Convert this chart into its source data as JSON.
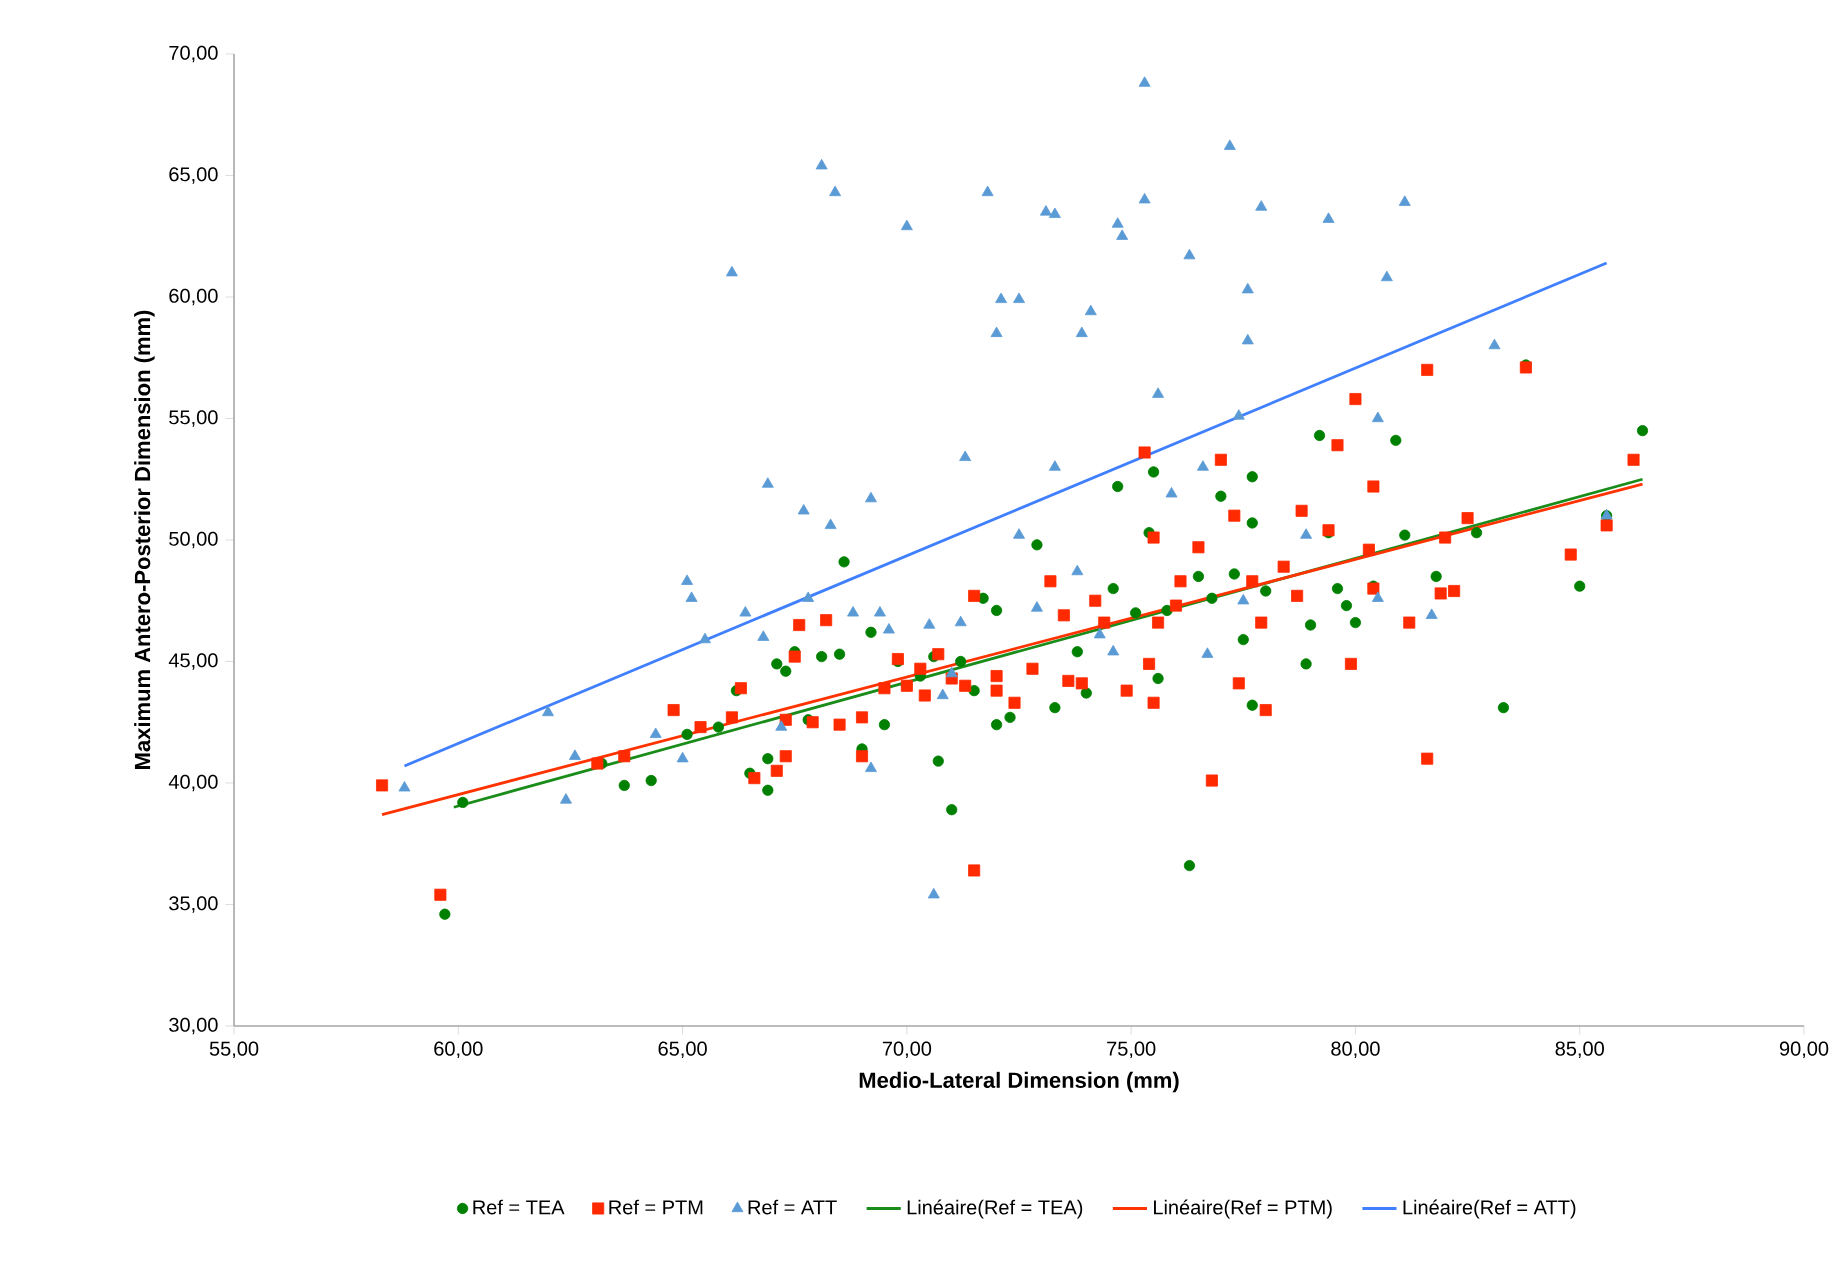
{
  "chart_data": {
    "type": "scatter",
    "xlabel": "Medio-Lateral Dimension (mm)",
    "ylabel": "Maximum Antero-Posterior Dimension (mm)",
    "xlim": [
      55,
      90
    ],
    "xticks": [
      {
        "value": 55,
        "label": "55,00"
      },
      {
        "value": 60,
        "label": "60,00"
      },
      {
        "value": 65,
        "label": "65,00"
      },
      {
        "value": 70,
        "label": "70,00"
      },
      {
        "value": 75,
        "label": "75,00"
      },
      {
        "value": 80,
        "label": "80,00"
      },
      {
        "value": 85,
        "label": "85,00"
      },
      {
        "value": 90,
        "label": "90,00"
      }
    ],
    "ylim": [
      30,
      70
    ],
    "yticks": [
      {
        "value": 30,
        "label": "30,00"
      },
      {
        "value": 35,
        "label": "35,00"
      },
      {
        "value": 40,
        "label": "40,00"
      },
      {
        "value": 45,
        "label": "45,00"
      },
      {
        "value": 50,
        "label": "50,00"
      },
      {
        "value": 55,
        "label": "55,00"
      },
      {
        "value": 60,
        "label": "60,00"
      },
      {
        "value": 65,
        "label": "65,00"
      },
      {
        "value": 70,
        "label": "70,00"
      }
    ],
    "legend": "bottom",
    "series": [
      {
        "name": "Ref = TEA",
        "marker": "circle",
        "color": "#008000",
        "x": [
          59.7,
          60.1,
          63.2,
          63.7,
          64.3,
          64.8,
          65.1,
          65.8,
          66.2,
          66.5,
          66.9,
          66.9,
          67.1,
          67.3,
          67.5,
          67.8,
          68.1,
          68.5,
          68.6,
          69.0,
          69.2,
          69.5,
          69.8,
          70.3,
          70.6,
          70.7,
          71.0,
          71.2,
          71.5,
          72.0,
          72.0,
          72.3,
          72.9,
          73.3,
          73.8,
          74.0,
          74.6,
          74.7,
          75.1,
          75.4,
          75.5,
          75.6,
          75.8,
          76.3,
          76.5,
          76.8,
          77.0,
          77.3,
          77.5,
          77.7,
          77.7,
          77.7,
          78.0,
          78.9,
          79.0,
          79.2,
          79.4,
          79.6,
          80.0,
          80.4,
          80.9,
          81.1,
          81.8,
          82.7,
          83.3,
          83.8,
          85.0,
          85.6,
          86.4,
          79.8,
          73.5,
          70.0,
          71.7
        ],
        "values": [
          34.6,
          39.2,
          40.8,
          39.9,
          40.1,
          null,
          42.0,
          42.3,
          43.8,
          40.4,
          39.7,
          41.0,
          44.9,
          44.6,
          45.4,
          42.6,
          45.2,
          45.3,
          49.1,
          41.4,
          46.2,
          42.4,
          45.0,
          44.4,
          45.2,
          40.9,
          38.9,
          45.0,
          43.8,
          47.1,
          42.4,
          42.7,
          49.8,
          43.1,
          45.4,
          43.7,
          48.0,
          52.2,
          47.0,
          50.3,
          52.8,
          44.3,
          47.1,
          36.6,
          48.5,
          47.6,
          51.8,
          48.6,
          45.9,
          52.6,
          50.7,
          43.2,
          47.9,
          44.9,
          46.5,
          54.3,
          50.3,
          48.0,
          46.6,
          48.1,
          54.1,
          50.2,
          48.5,
          50.3,
          43.1,
          57.2,
          48.1,
          51.0,
          54.5,
          47.3,
          null,
          44.0,
          47.6
        ]
      },
      {
        "name": "Ref = PTM",
        "marker": "square",
        "color": "#ff2a00",
        "x": [
          58.3,
          59.6,
          63.1,
          63.7,
          64.8,
          65.4,
          66.1,
          66.3,
          66.6,
          67.1,
          67.3,
          67.3,
          67.5,
          67.6,
          67.9,
          68.2,
          68.5,
          69.0,
          69.0,
          69.5,
          69.8,
          70.0,
          70.3,
          70.7,
          70.4,
          71.0,
          71.3,
          71.5,
          71.5,
          72.0,
          72.0,
          72.4,
          72.8,
          73.2,
          73.5,
          73.6,
          73.9,
          74.2,
          74.4,
          74.9,
          75.3,
          75.5,
          75.6,
          75.5,
          75.4,
          76.0,
          76.1,
          76.5,
          76.8,
          77.0,
          77.3,
          77.4,
          77.7,
          77.9,
          78.0,
          78.4,
          78.8,
          78.7,
          79.4,
          79.6,
          79.9,
          80.0,
          80.3,
          80.4,
          80.4,
          81.2,
          81.6,
          81.6,
          81.9,
          82.0,
          82.2,
          82.5,
          84.8,
          85.6,
          86.2,
          83.8
        ],
        "values": [
          39.9,
          35.4,
          40.8,
          41.1,
          43.0,
          42.3,
          42.7,
          43.9,
          40.2,
          40.5,
          41.1,
          42.6,
          45.2,
          46.5,
          42.5,
          46.7,
          42.4,
          41.1,
          42.7,
          43.9,
          45.1,
          44.0,
          44.7,
          45.3,
          43.6,
          44.3,
          44.0,
          47.7,
          36.4,
          43.8,
          44.4,
          43.3,
          44.7,
          48.3,
          46.9,
          44.2,
          44.1,
          47.5,
          46.6,
          43.8,
          53.6,
          50.1,
          46.6,
          43.3,
          44.9,
          47.3,
          48.3,
          49.7,
          40.1,
          53.3,
          51.0,
          44.1,
          48.3,
          46.6,
          43.0,
          48.9,
          51.2,
          47.7,
          50.4,
          53.9,
          44.9,
          55.8,
          49.6,
          52.2,
          48.0,
          46.6,
          57.0,
          41.0,
          47.8,
          50.1,
          47.9,
          50.9,
          49.4,
          50.6,
          53.3,
          57.1
        ]
      },
      {
        "name": "Ref = ATT",
        "marker": "triangle",
        "color": "#5b9bd5",
        "x": [
          58.8,
          62.0,
          62.4,
          62.6,
          64.4,
          65.1,
          65.2,
          65.5,
          65.0,
          66.1,
          66.4,
          66.8,
          66.9,
          67.2,
          67.8,
          67.7,
          68.1,
          68.3,
          68.4,
          68.8,
          69.2,
          69.4,
          69.6,
          69.2,
          70.0,
          70.5,
          70.6,
          70.8,
          71.0,
          71.3,
          71.8,
          72.0,
          72.1,
          72.5,
          72.5,
          73.1,
          73.3,
          73.3,
          73.8,
          73.9,
          74.1,
          74.3,
          74.7,
          74.8,
          75.3,
          75.3,
          75.6,
          75.9,
          76.3,
          76.6,
          77.2,
          77.4,
          77.6,
          77.6,
          77.9,
          77.5,
          78.9,
          79.4,
          80.5,
          80.7,
          81.1,
          80.5,
          81.7,
          83.1,
          85.6,
          72.9,
          71.2,
          76.7,
          74.6
        ],
        "values": [
          39.8,
          42.9,
          39.3,
          41.1,
          42.0,
          48.3,
          47.6,
          45.9,
          41.0,
          61.0,
          47.0,
          46.0,
          52.3,
          42.3,
          47.6,
          51.2,
          65.4,
          50.6,
          64.3,
          47.0,
          51.7,
          47.0,
          46.3,
          40.6,
          62.9,
          46.5,
          35.4,
          43.6,
          44.5,
          53.4,
          64.3,
          58.5,
          59.9,
          59.9,
          50.2,
          63.5,
          63.4,
          53.0,
          48.7,
          58.5,
          59.4,
          46.1,
          63.0,
          62.5,
          64.0,
          68.8,
          56.0,
          51.9,
          61.7,
          53.0,
          66.2,
          55.1,
          58.2,
          60.3,
          63.7,
          47.5,
          50.2,
          63.2,
          55.0,
          60.8,
          63.9,
          47.6,
          46.9,
          58.0,
          51.0,
          47.2,
          46.6,
          45.3,
          45.4
        ]
      },
      {
        "name": "Linéaire(Ref = TEA)",
        "type": "line",
        "marker": "none",
        "color": "#1a8c1a",
        "x": [
          59.9,
          86.4
        ],
        "values": [
          39.0,
          52.5
        ]
      },
      {
        "name": "Linéaire(Ref = PTM)",
        "type": "line",
        "marker": "none",
        "color": "#ff3300",
        "x": [
          58.3,
          86.4
        ],
        "values": [
          38.7,
          52.3
        ]
      },
      {
        "name": "Linéaire(Ref = ATT)",
        "type": "line",
        "marker": "none",
        "color": "#4080ff",
        "x": [
          58.8,
          85.6
        ],
        "values": [
          40.7,
          61.4
        ]
      }
    ]
  }
}
